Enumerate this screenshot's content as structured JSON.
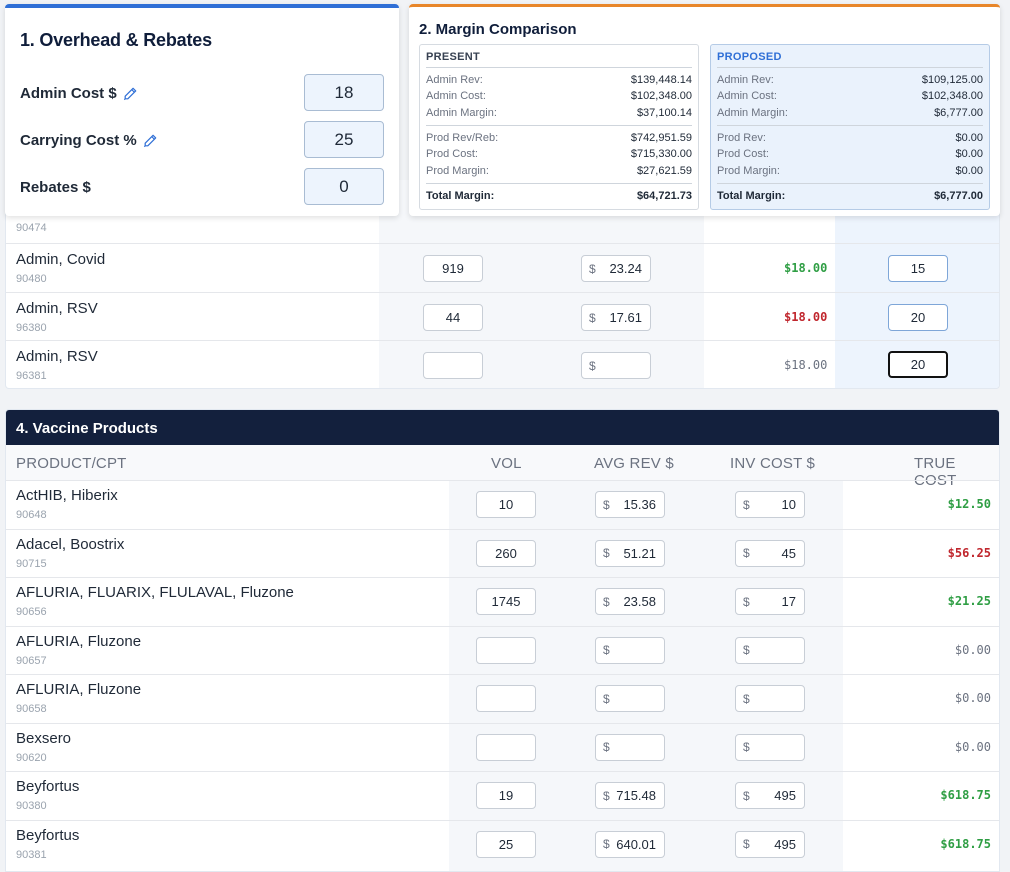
{
  "overhead": {
    "title": "1. Overhead & Rebates",
    "admin_cost_label": "Admin Cost $",
    "admin_cost_value": "18",
    "carrying_cost_label": "Carrying Cost %",
    "carrying_cost_value": "25",
    "rebates_label": "Rebates $",
    "rebates_value": "0"
  },
  "margin": {
    "title": "2. Margin Comparison",
    "present": {
      "heading": "PRESENT",
      "admin_rev_label": "Admin Rev:",
      "admin_rev": "$139,448.14",
      "admin_cost_label": "Admin Cost:",
      "admin_cost": "$102,348.00",
      "admin_margin_label": "Admin Margin:",
      "admin_margin": "$37,100.14",
      "prod_rev_label": "Prod Rev/Reb:",
      "prod_rev": "$742,951.59",
      "prod_cost_label": "Prod Cost:",
      "prod_cost": "$715,330.00",
      "prod_margin_label": "Prod Margin:",
      "prod_margin": "$27,621.59",
      "total_label": "Total Margin:",
      "total": "$64,721.73"
    },
    "proposed": {
      "heading": "PROPOSED",
      "admin_rev_label": "Admin Rev:",
      "admin_rev": "$109,125.00",
      "admin_cost_label": "Admin Cost:",
      "admin_cost": "$102,348.00",
      "admin_margin_label": "Admin Margin:",
      "admin_margin": "$6,777.00",
      "prod_rev_label": "Prod Rev:",
      "prod_rev": "$0.00",
      "prod_cost_label": "Prod Cost:",
      "prod_cost": "$0.00",
      "prod_margin_label": "Prod Margin:",
      "prod_margin": "$0.00",
      "total_label": "Total Margin:",
      "total": "$6,777.00"
    }
  },
  "admin_rows": [
    {
      "name": "",
      "cpt": "90474",
      "vol": "",
      "rev": "",
      "cost": "",
      "proposed": ""
    },
    {
      "name": "Admin, Covid",
      "cpt": "90480",
      "vol": "919",
      "rev": "23.24",
      "cost": "$18.00",
      "proposed": "15"
    },
    {
      "name": "Admin, RSV",
      "cpt": "96380",
      "vol": "44",
      "rev": "17.61",
      "cost": "$18.00",
      "proposed": "20"
    },
    {
      "name": "Admin, RSV",
      "cpt": "96381",
      "vol": "",
      "rev": "",
      "cost": "$18.00",
      "proposed": "20"
    }
  ],
  "currency_symbol": "$",
  "vaccines": {
    "title": "4. Vaccine Products",
    "headers": {
      "product": "PRODUCT/CPT",
      "vol": "VOL",
      "avg_rev": "AVG REV $",
      "inv_cost": "INV COST $",
      "true_cost": "TRUE COST"
    },
    "rows": [
      {
        "name": "ActHIB, Hiberix",
        "cpt": "90648",
        "vol": "10",
        "avg_rev": "15.36",
        "inv_cost": "10",
        "true_cost": "$12.50",
        "status": "green"
      },
      {
        "name": "Adacel, Boostrix",
        "cpt": "90715",
        "vol": "260",
        "avg_rev": "51.21",
        "inv_cost": "45",
        "true_cost": "$56.25",
        "status": "red"
      },
      {
        "name": "AFLURIA, FLUARIX, FLULAVAL, Fluzone",
        "cpt": "90656",
        "vol": "1745",
        "avg_rev": "23.58",
        "inv_cost": "17",
        "true_cost": "$21.25",
        "status": "green"
      },
      {
        "name": "AFLURIA, Fluzone",
        "cpt": "90657",
        "vol": "",
        "avg_rev": "",
        "inv_cost": "",
        "true_cost": "$0.00",
        "status": "gray"
      },
      {
        "name": "AFLURIA, Fluzone",
        "cpt": "90658",
        "vol": "",
        "avg_rev": "",
        "inv_cost": "",
        "true_cost": "$0.00",
        "status": "gray"
      },
      {
        "name": "Bexsero",
        "cpt": "90620",
        "vol": "",
        "avg_rev": "",
        "inv_cost": "",
        "true_cost": "$0.00",
        "status": "gray"
      },
      {
        "name": "Beyfortus",
        "cpt": "90380",
        "vol": "19",
        "avg_rev": "715.48",
        "inv_cost": "495",
        "true_cost": "$618.75",
        "status": "green"
      },
      {
        "name": "Beyfortus",
        "cpt": "90381",
        "vol": "25",
        "avg_rev": "640.01",
        "inv_cost": "495",
        "true_cost": "$618.75",
        "status": "green"
      }
    ]
  },
  "colors": {
    "accent_blue": "#2f6fd6",
    "accent_orange": "#e8862a",
    "navy": "#13203d",
    "positive": "#2f9e44",
    "negative": "#c0262d"
  },
  "icons": {
    "edit": "pencil-icon"
  }
}
